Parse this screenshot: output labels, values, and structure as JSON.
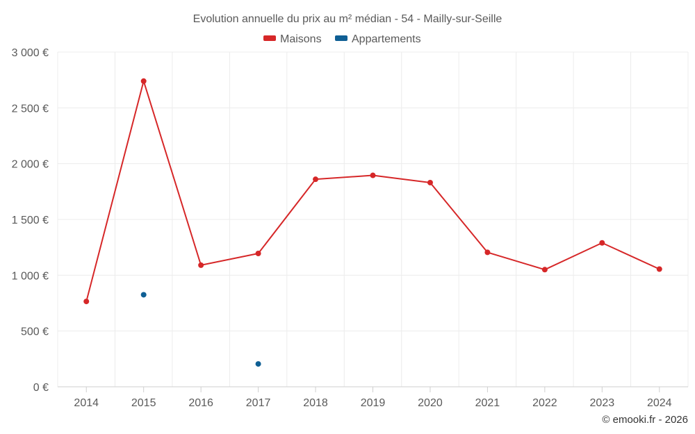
{
  "chart_data": {
    "type": "line",
    "title": "Evolution annuelle du prix au m² médian - 54 - Mailly-sur-Seille",
    "categories": [
      "2014",
      "2015",
      "2016",
      "2017",
      "2018",
      "2019",
      "2020",
      "2021",
      "2022",
      "2023",
      "2024"
    ],
    "ylim": [
      0,
      3000
    ],
    "yticks": [
      0,
      500,
      1000,
      1500,
      2000,
      2500,
      3000
    ],
    "ytick_labels": [
      "0 €",
      "500 €",
      "1 000 €",
      "1 500 €",
      "2 000 €",
      "2 500 €",
      "3 000 €"
    ],
    "xlabel": "",
    "ylabel": "",
    "grid": true,
    "legend_position": "top-center",
    "series": [
      {
        "name": "Maisons",
        "color": "#d62728",
        "values": [
          765,
          2740,
          1090,
          1195,
          1860,
          1895,
          1830,
          1205,
          1050,
          1290,
          1055
        ]
      },
      {
        "name": "Appartements",
        "color": "#0f5f94",
        "values": [
          null,
          825,
          null,
          205,
          null,
          null,
          null,
          null,
          null,
          null,
          null
        ]
      }
    ]
  },
  "credit": "© emooki.fr - 2026"
}
